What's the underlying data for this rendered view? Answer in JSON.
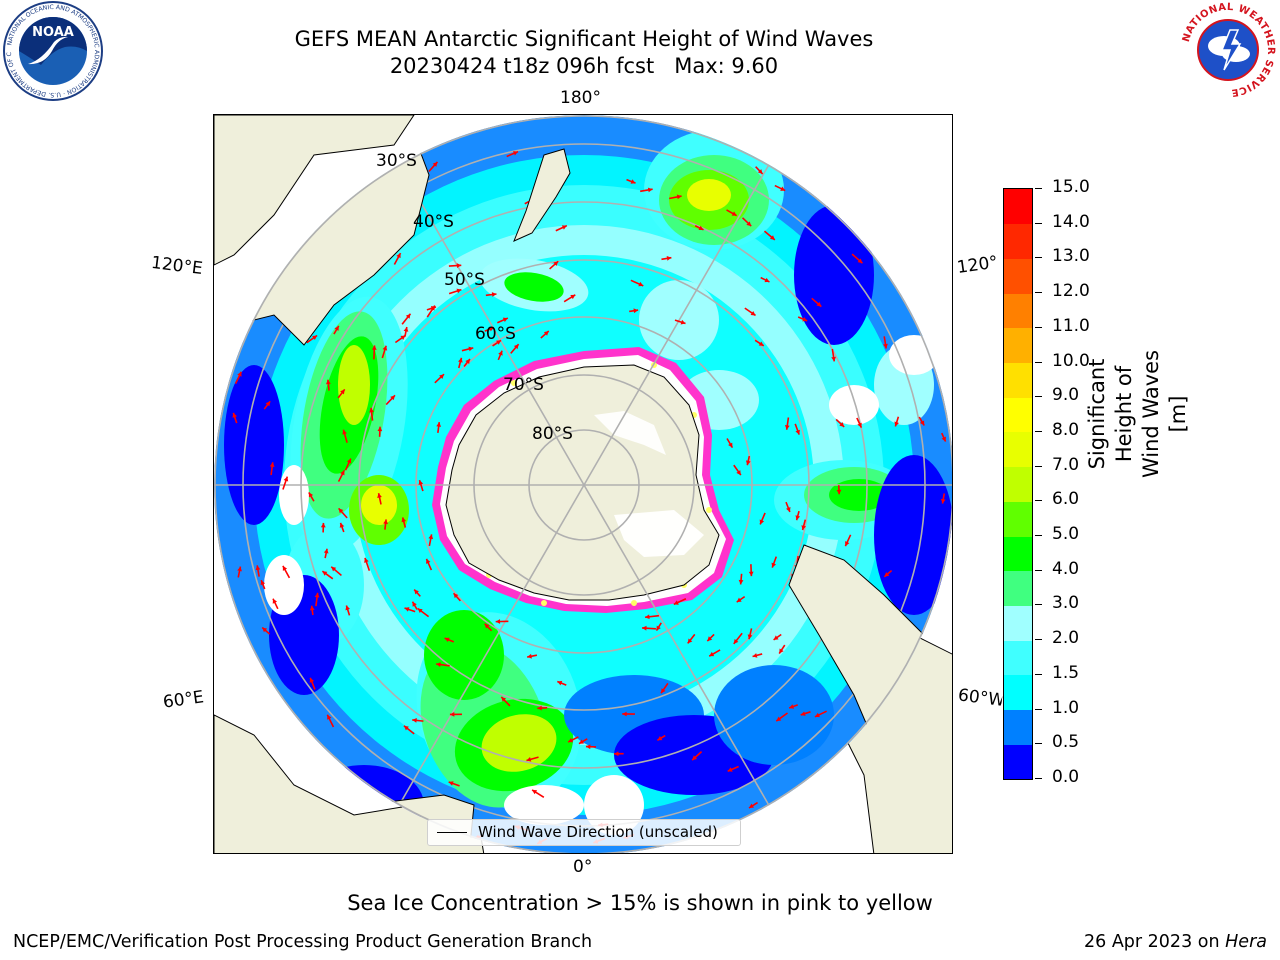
{
  "header": {
    "title_line1": "GEFS MEAN Antarctic Significant Height of Wind Waves",
    "title_line2": "20230424 t18z 096h fcst   Max: 9.60"
  },
  "logos": {
    "left": {
      "icon": "noaa-logo-icon",
      "text": "NOAA",
      "ring_text": "NATIONAL OCEANIC AND ATMOSPHERIC ADMINISTRATION · U.S. DEPARTMENT OF COMMERCE"
    },
    "right": {
      "icon": "nws-logo-icon",
      "ring_text": "NATIONAL WEATHER SERVICE"
    }
  },
  "map": {
    "projection": "south-polar-stereographic",
    "longitude_labels": {
      "top": "180°",
      "bottom": "0°",
      "left_upper": "120°E",
      "left_lower": "60°E",
      "right_upper": "120°",
      "right_lower": "60°W"
    },
    "latitude_labels": [
      "30°S",
      "40°S",
      "50°S",
      "60°S",
      "70°S",
      "80°S"
    ],
    "colors": {
      "land": "#efefdb",
      "coast": "#000000",
      "grid": "#b0b0b0",
      "arrow": "#ff0000",
      "ice_edge": "#ff33cc",
      "ice_inner": "#ffff66"
    }
  },
  "legend": {
    "label": "Wind Wave Direction (unscaled)"
  },
  "colorbar": {
    "title": "Significant Height of Wind Waves [m]",
    "ticks": [
      "0.0",
      "0.5",
      "1.0",
      "1.5",
      "2.0",
      "3.0",
      "4.0",
      "5.0",
      "6.0",
      "7.0",
      "8.0",
      "9.0",
      "10.0",
      "11.0",
      "12.0",
      "13.0",
      "14.0",
      "15.0"
    ],
    "colors": [
      "#0000ff",
      "#0080ff",
      "#00ffff",
      "#40ffff",
      "#a0ffff",
      "#40ff80",
      "#00ff00",
      "#60ff00",
      "#c0ff00",
      "#e8ff00",
      "#ffff00",
      "#ffe000",
      "#ffb000",
      "#ff8000",
      "#ff5000",
      "#ff2800",
      "#ff0000"
    ]
  },
  "notes": {
    "ice": "Sea Ice Concentration > 15% is shown in pink to yellow"
  },
  "footer": {
    "left": "NCEP/EMC/Verification Post Processing Product Generation Branch",
    "right_prefix": "26 Apr 2023 on ",
    "right_host": "Hera"
  }
}
